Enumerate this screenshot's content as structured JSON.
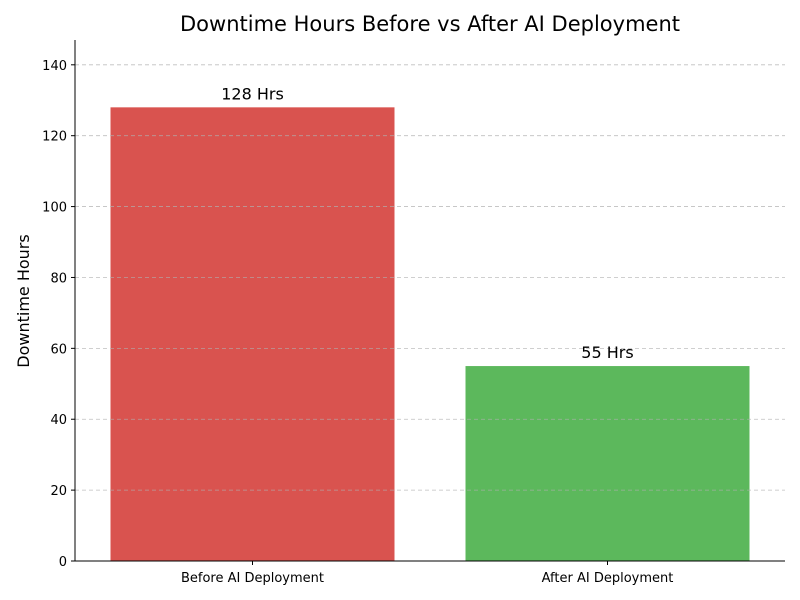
{
  "chart_data": {
    "type": "bar",
    "title": "Downtime Hours Before vs After AI Deployment",
    "xlabel": "",
    "ylabel": "Downtime Hours",
    "categories": [
      "Before AI Deployment",
      "After AI Deployment"
    ],
    "values": [
      128,
      55
    ],
    "data_labels": [
      "128 Hrs",
      "55 Hrs"
    ],
    "colors": [
      "#d9534f",
      "#5cb85c"
    ],
    "ylim": [
      0,
      147
    ],
    "yticks": [
      0,
      20,
      40,
      60,
      80,
      100,
      120,
      140
    ],
    "grid": "y-dashed",
    "legend": "none"
  }
}
